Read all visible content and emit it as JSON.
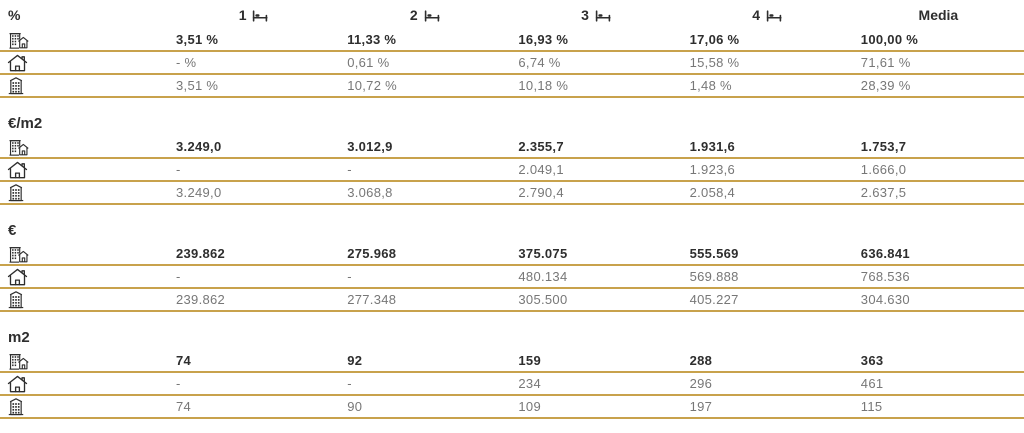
{
  "colors": {
    "accent_line": "#C8A24C",
    "text_dark": "#2E2E2E",
    "text_gray": "#777777",
    "icon_stroke": "#2E2E2E",
    "background": "#FFFFFF"
  },
  "chart_data": {
    "type": "table",
    "columns": [
      {
        "label": "1",
        "bed_icon": true
      },
      {
        "label": "2",
        "bed_icon": true
      },
      {
        "label": "3",
        "bed_icon": true
      },
      {
        "label": "4",
        "bed_icon": true
      },
      {
        "label": "Media",
        "bed_icon": false
      }
    ],
    "row_icons": [
      "building-house-icon",
      "house-icon",
      "building-icon"
    ],
    "sections": [
      {
        "unit": "%",
        "unit_in_header": true,
        "rows": [
          {
            "icon": "building-house-icon",
            "bold": true,
            "values": [
              "3,51 %",
              "11,33 %",
              "16,93 %",
              "17,06 %",
              "100,00 %"
            ]
          },
          {
            "icon": "house-icon",
            "bold": false,
            "values": [
              "- %",
              "0,61 %",
              "6,74 %",
              "15,58 %",
              "71,61 %"
            ]
          },
          {
            "icon": "building-icon",
            "bold": false,
            "values": [
              "3,51 %",
              "10,72 %",
              "10,18 %",
              "1,48 %",
              "28,39 %"
            ]
          }
        ]
      },
      {
        "unit": "€/m2",
        "unit_in_header": false,
        "rows": [
          {
            "icon": "building-house-icon",
            "bold": true,
            "values": [
              "3.249,0",
              "3.012,9",
              "2.355,7",
              "1.931,6",
              "1.753,7"
            ]
          },
          {
            "icon": "house-icon",
            "bold": false,
            "values": [
              "-",
              "-",
              "2.049,1",
              "1.923,6",
              "1.666,0"
            ]
          },
          {
            "icon": "building-icon",
            "bold": false,
            "values": [
              "3.249,0",
              "3.068,8",
              "2.790,4",
              "2.058,4",
              "2.637,5"
            ]
          }
        ]
      },
      {
        "unit": "€",
        "unit_in_header": false,
        "rows": [
          {
            "icon": "building-house-icon",
            "bold": true,
            "values": [
              "239.862",
              "275.968",
              "375.075",
              "555.569",
              "636.841"
            ]
          },
          {
            "icon": "house-icon",
            "bold": false,
            "values": [
              "-",
              "-",
              "480.134",
              "569.888",
              "768.536"
            ]
          },
          {
            "icon": "building-icon",
            "bold": false,
            "values": [
              "239.862",
              "277.348",
              "305.500",
              "405.227",
              "304.630"
            ]
          }
        ]
      },
      {
        "unit": "m2",
        "unit_in_header": false,
        "rows": [
          {
            "icon": "building-house-icon",
            "bold": true,
            "values": [
              "74",
              "92",
              "159",
              "288",
              "363"
            ]
          },
          {
            "icon": "house-icon",
            "bold": false,
            "values": [
              "-",
              "-",
              "234",
              "296",
              "461"
            ]
          },
          {
            "icon": "building-icon",
            "bold": false,
            "values": [
              "74",
              "90",
              "109",
              "197",
              "115"
            ]
          }
        ]
      }
    ]
  }
}
